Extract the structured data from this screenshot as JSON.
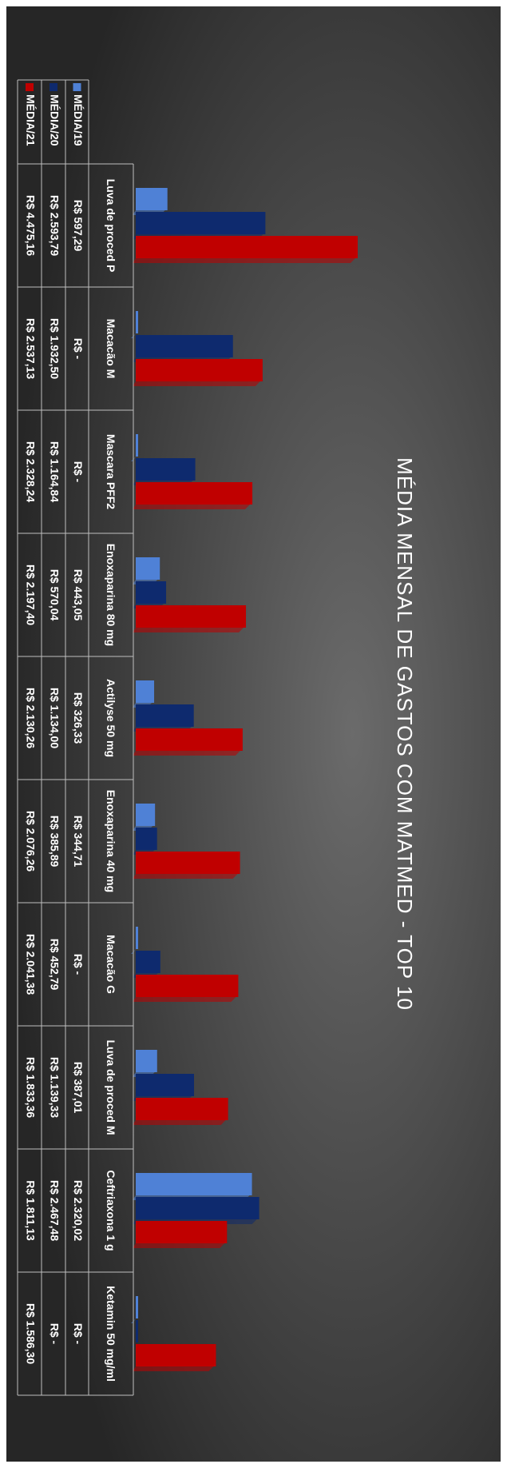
{
  "chart_data": {
    "type": "bar",
    "title": "MÉDIA MENSAL DE GASTOS COM MATMED - TOP 10",
    "categories": [
      "Luva de proced P",
      "Macacão M",
      "Mascara PFF2",
      "Enoxaparina 80 mg",
      "Actilyse 50 mg",
      "Enoxaparina 40 mg",
      "Macacão G",
      "Luva de proced M",
      "Ceftriaxona 1 g",
      "Ketamin 50 mg/ml"
    ],
    "series": [
      {
        "name": "MÉDIA/19",
        "color": "#4f81d6",
        "values": [
          597.29,
          0,
          0,
          443.05,
          326.33,
          344.71,
          0,
          387.01,
          2320.02,
          0
        ],
        "value_labels": [
          "R$ 597,29",
          "R$ -",
          "R$ -",
          "R$ 443,05",
          "R$ 326,33",
          "R$ 344,71",
          "R$ -",
          "R$ 387,01",
          "R$ 2.320,02",
          "R$ -"
        ]
      },
      {
        "name": "MÉDIA/20",
        "color": "#0e2a6e",
        "values": [
          2593.79,
          1932.5,
          1164.84,
          570.04,
          1134.0,
          385.89,
          452.79,
          1139.33,
          2467.48,
          0
        ],
        "value_labels": [
          "R$ 2.593,79",
          "R$ 1.932,50",
          "R$ 1.164,84",
          "R$ 570,04",
          "R$ 1.134,00",
          "R$ 385,89",
          "R$ 452,79",
          "R$ 1.139,33",
          "R$ 2.467,48",
          "R$ -"
        ]
      },
      {
        "name": "MÉDIA/21",
        "color": "#c00000",
        "values": [
          4475.16,
          2537.13,
          2328.24,
          2197.4,
          2130.26,
          2076.26,
          2041.38,
          1833.36,
          1811.13,
          1586.3
        ],
        "value_labels": [
          "R$ 4.475,16",
          "R$ 2.537,13",
          "R$ 2.328,24",
          "R$ 2.197,40",
          "R$ 2.130,26",
          "R$ 2.076,26",
          "R$ 2.041,38",
          "R$ 1.833,36",
          "R$ 1.811,13",
          "R$ 1.586,30"
        ]
      }
    ]
  }
}
